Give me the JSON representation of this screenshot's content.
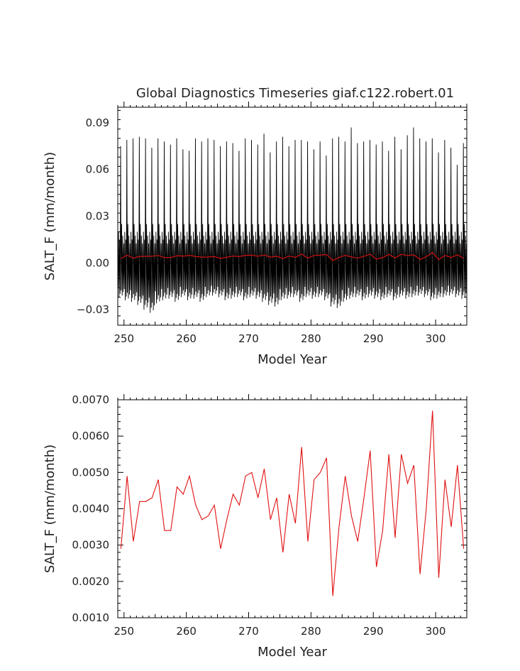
{
  "title": "Global Diagnostics Timeseries giaf.c122.robert.01",
  "colors": {
    "monthly": "#000000",
    "annual": "#e01010",
    "axes": "#000000"
  },
  "chart_data": [
    {
      "type": "line",
      "name": "monthly-panel",
      "xlabel": "Model Year",
      "ylabel": "SALT_F (mm/month)",
      "xlim": [
        249,
        305
      ],
      "ylim": [
        -0.04,
        0.1
      ],
      "xticks": [
        250,
        260,
        270,
        280,
        290,
        300
      ],
      "xtick_labels": [
        "250",
        "260",
        "270",
        "280",
        "290",
        "300"
      ],
      "yticks": [
        -0.03,
        0.0,
        0.03,
        0.06,
        0.09
      ],
      "ytick_labels": [
        "−0.03",
        "0.00",
        "0.03",
        "0.06",
        "0.09"
      ],
      "zero_line": true,
      "grid": false,
      "series": [
        {
          "role": "monthly",
          "color": "#000000",
          "x_start": 249.04,
          "x_step": 0.08333,
          "annual_peak_month": 6,
          "annual_peaks": [
            0.075,
            0.079,
            0.08,
            0.081,
            0.08,
            0.074,
            0.08,
            0.078,
            0.076,
            0.08,
            0.073,
            0.072,
            0.08,
            0.078,
            0.08,
            0.079,
            0.075,
            0.078,
            0.077,
            0.072,
            0.08,
            0.079,
            0.076,
            0.083,
            0.071,
            0.078,
            0.081,
            0.075,
            0.079,
            0.079,
            0.078,
            0.073,
            0.078,
            0.069,
            0.08,
            0.081,
            0.078,
            0.087,
            0.077,
            0.078,
            0.079,
            0.076,
            0.078,
            0.072,
            0.081,
            0.073,
            0.082,
            0.087,
            0.08,
            0.078,
            0.08,
            0.071,
            0.079,
            0.074,
            0.063,
            0.077
          ],
          "annual_troughs": [
            -0.022,
            -0.024,
            -0.025,
            -0.027,
            -0.03,
            -0.032,
            -0.026,
            -0.024,
            -0.023,
            -0.025,
            -0.022,
            -0.024,
            -0.023,
            -0.025,
            -0.022,
            -0.021,
            -0.022,
            -0.024,
            -0.023,
            -0.022,
            -0.024,
            -0.022,
            -0.023,
            -0.025,
            -0.027,
            -0.028,
            -0.024,
            -0.023,
            -0.022,
            -0.025,
            -0.022,
            -0.023,
            -0.022,
            -0.024,
            -0.028,
            -0.029,
            -0.025,
            -0.023,
            -0.022,
            -0.024,
            -0.022,
            -0.023,
            -0.024,
            -0.022,
            -0.024,
            -0.022,
            -0.023,
            -0.022,
            -0.021,
            -0.022,
            -0.024,
            -0.023,
            -0.022,
            -0.021,
            -0.022,
            -0.023
          ],
          "minor_peak": 0.025
        },
        {
          "role": "annual",
          "color": "#e01010",
          "x": [
            249.5,
            250.5,
            251.5,
            252.5,
            253.5,
            254.5,
            255.5,
            256.5,
            257.5,
            258.5,
            259.5,
            260.5,
            261.5,
            262.5,
            263.5,
            264.5,
            265.5,
            266.5,
            267.5,
            268.5,
            269.5,
            270.5,
            271.5,
            272.5,
            273.5,
            274.5,
            275.5,
            276.5,
            277.5,
            278.5,
            279.5,
            280.5,
            281.5,
            282.5,
            283.5,
            284.5,
            285.5,
            286.5,
            287.5,
            288.5,
            289.5,
            290.5,
            291.5,
            292.5,
            293.5,
            294.5,
            295.5,
            296.5,
            297.5,
            298.5,
            299.5,
            300.5,
            301.5,
            302.5,
            303.5,
            304.5
          ],
          "y": [
            0.0029,
            0.0049,
            0.0031,
            0.0042,
            0.0042,
            0.0043,
            0.0048,
            0.0034,
            0.0034,
            0.0046,
            0.0044,
            0.0049,
            0.0041,
            0.0037,
            0.0038,
            0.0041,
            0.0029,
            0.0037,
            0.0044,
            0.0041,
            0.0049,
            0.005,
            0.0043,
            0.0051,
            0.0037,
            0.0043,
            0.0028,
            0.0044,
            0.0036,
            0.0057,
            0.0031,
            0.0048,
            0.005,
            0.0054,
            0.0016,
            0.0035,
            0.0049,
            0.0038,
            0.0031,
            0.0043,
            0.0056,
            0.0024,
            0.0034,
            0.0055,
            0.0032,
            0.0055,
            0.0047,
            0.0052,
            0.0022,
            0.004,
            0.0067,
            0.0021,
            0.0048,
            0.0035,
            0.0052,
            0.0029
          ]
        }
      ]
    },
    {
      "type": "line",
      "name": "annual-panel",
      "xlabel": "Model Year",
      "ylabel": "SALT_F (mm/month)",
      "xlim": [
        249,
        305
      ],
      "ylim": [
        0.001,
        0.007
      ],
      "xticks": [
        250,
        260,
        270,
        280,
        290,
        300
      ],
      "xtick_labels": [
        "250",
        "260",
        "270",
        "280",
        "290",
        "300"
      ],
      "yticks": [
        0.001,
        0.002,
        0.003,
        0.004,
        0.005,
        0.006,
        0.007
      ],
      "ytick_labels": [
        "0.0010",
        "0.0020",
        "0.0030",
        "0.0040",
        "0.0050",
        "0.0060",
        "0.0070"
      ],
      "grid": false,
      "series": [
        {
          "role": "annual",
          "color": "#e01010",
          "x": [
            249.5,
            250.5,
            251.5,
            252.5,
            253.5,
            254.5,
            255.5,
            256.5,
            257.5,
            258.5,
            259.5,
            260.5,
            261.5,
            262.5,
            263.5,
            264.5,
            265.5,
            266.5,
            267.5,
            268.5,
            269.5,
            270.5,
            271.5,
            272.5,
            273.5,
            274.5,
            275.5,
            276.5,
            277.5,
            278.5,
            279.5,
            280.5,
            281.5,
            282.5,
            283.5,
            284.5,
            285.5,
            286.5,
            287.5,
            288.5,
            289.5,
            290.5,
            291.5,
            292.5,
            293.5,
            294.5,
            295.5,
            296.5,
            297.5,
            298.5,
            299.5,
            300.5,
            301.5,
            302.5,
            303.5,
            304.5
          ],
          "y": [
            0.0029,
            0.0049,
            0.0031,
            0.0042,
            0.0042,
            0.0043,
            0.0048,
            0.0034,
            0.0034,
            0.0046,
            0.0044,
            0.0049,
            0.0041,
            0.0037,
            0.0038,
            0.0041,
            0.0029,
            0.0037,
            0.0044,
            0.0041,
            0.0049,
            0.005,
            0.0043,
            0.0051,
            0.0037,
            0.0043,
            0.0028,
            0.0044,
            0.0036,
            0.0057,
            0.0031,
            0.0048,
            0.005,
            0.0054,
            0.0016,
            0.0035,
            0.0049,
            0.0038,
            0.0031,
            0.0043,
            0.0056,
            0.0024,
            0.0034,
            0.0055,
            0.0032,
            0.0055,
            0.0047,
            0.0052,
            0.0022,
            0.004,
            0.0067,
            0.0021,
            0.0048,
            0.0035,
            0.0052,
            0.0029
          ]
        }
      ]
    }
  ]
}
